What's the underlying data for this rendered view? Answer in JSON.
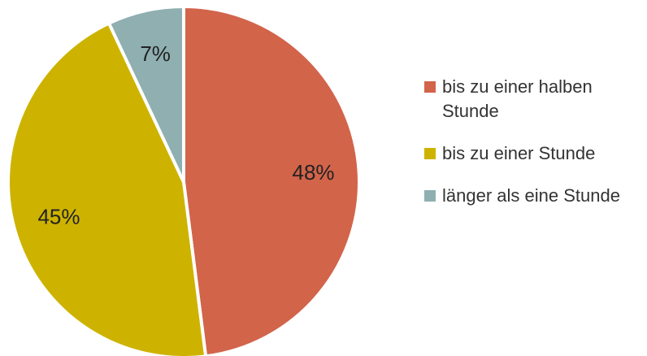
{
  "chart_data": {
    "type": "pie",
    "categories": [
      "bis zu einer halben Stunde",
      "bis zu einer Stunde",
      "länger als eine Stunde"
    ],
    "values": [
      48,
      45,
      7
    ],
    "value_labels": [
      "48%",
      "45%",
      "7%"
    ],
    "colors": [
      "#d2644a",
      "#cdb300",
      "#8fafb0"
    ],
    "legend": "right"
  }
}
